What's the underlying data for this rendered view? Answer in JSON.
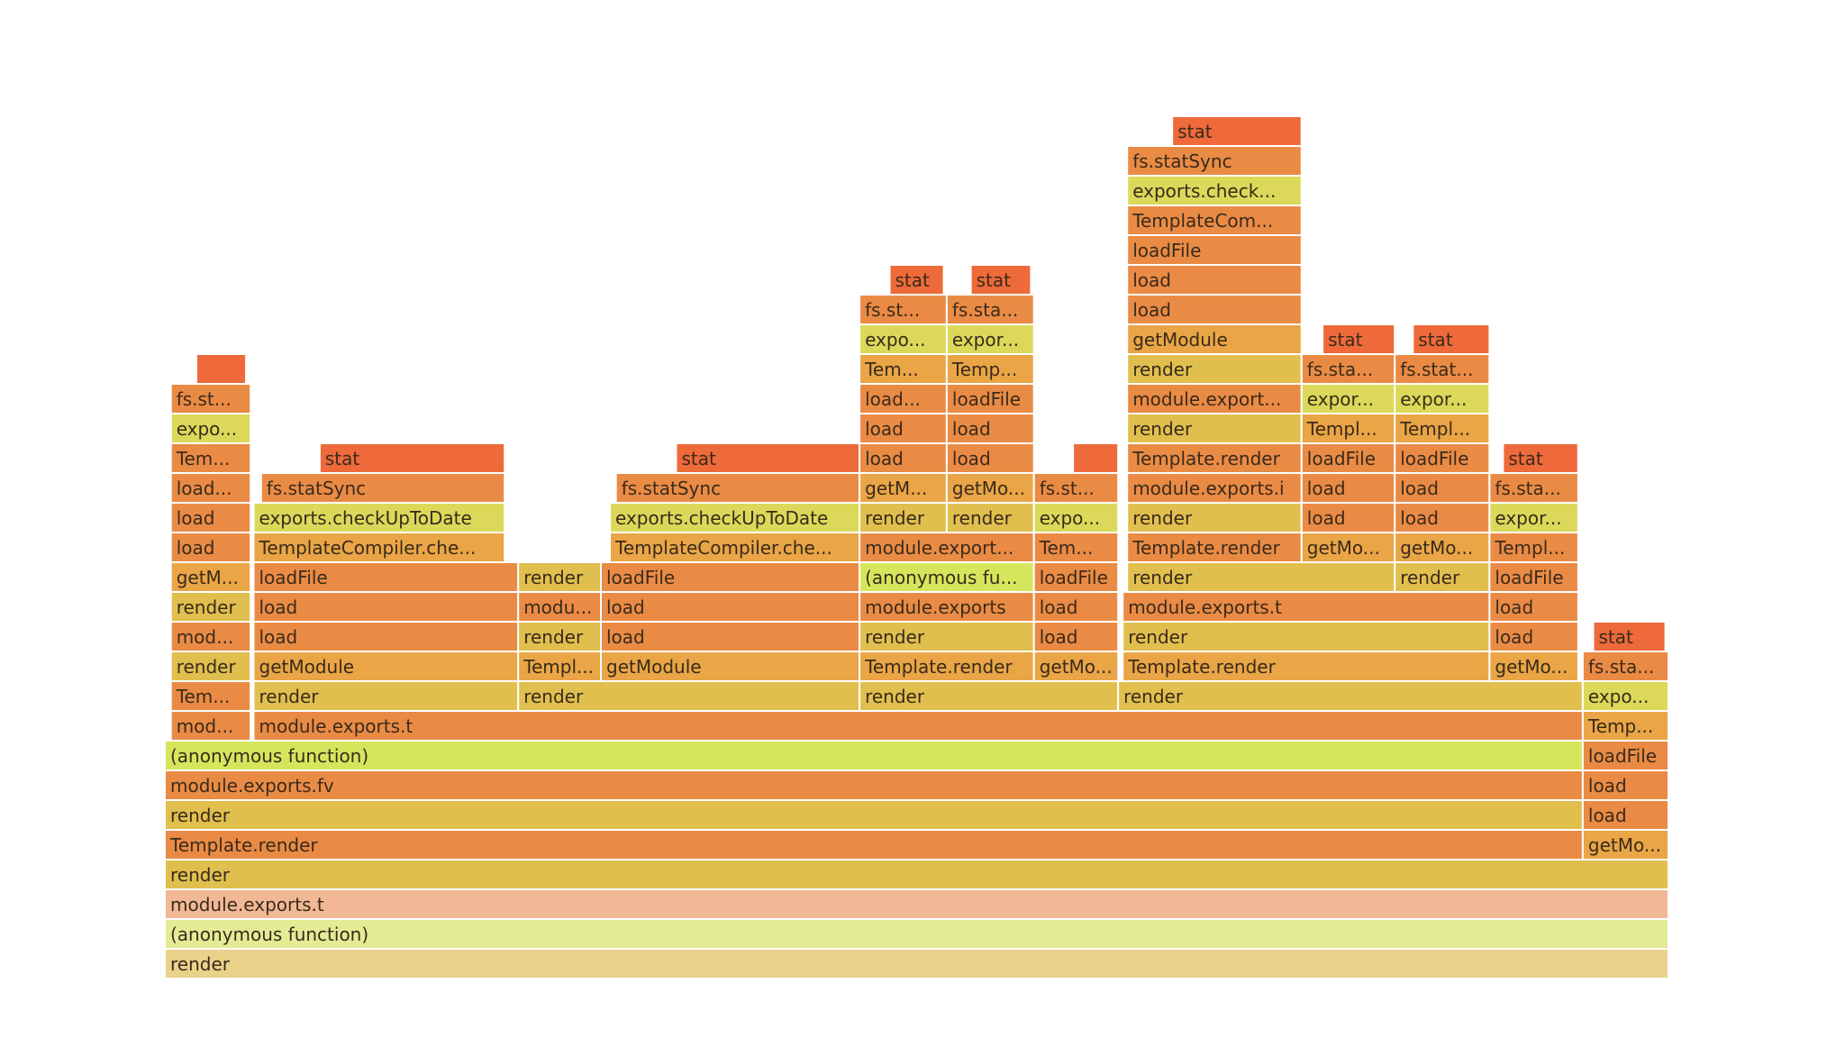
{
  "palette": {
    "red": "#ee6a3b",
    "orange": "#ea8b45",
    "amber": "#e9a546",
    "gold": "#e0bf4e",
    "yellow": "#dcd95a",
    "lime": "#d6e65c",
    "faded_salmon": "#f2b895",
    "faded_lime": "#e3ec94",
    "faded_tan": "#ead28a"
  },
  "chart_data": {
    "type": "flamegraph",
    "frames": [
      {
        "label": "render",
        "color": "faded_tan",
        "depth": 0,
        "start": 0,
        "end": 1.0
      },
      {
        "label": "(anonymous function)",
        "color": "faded_lime",
        "depth": 1,
        "start": 0,
        "end": 1.0
      },
      {
        "label": "module.exports.t",
        "color": "faded_salmon",
        "depth": 2,
        "start": 0,
        "end": 1.0
      },
      {
        "label": "render",
        "color": "gold",
        "depth": 3,
        "start": 0,
        "end": 1.0
      },
      {
        "label": "Template.render",
        "color": "orange",
        "depth": 4,
        "start": 0,
        "end": 0.943
      },
      {
        "label": "getMo...",
        "color": "amber",
        "depth": 4,
        "start": 0.943,
        "end": 1.0
      },
      {
        "label": "render",
        "color": "gold",
        "depth": 5,
        "start": 0,
        "end": 0.943
      },
      {
        "label": "load",
        "color": "orange",
        "depth": 5,
        "start": 0.943,
        "end": 1.0
      },
      {
        "label": "module.exports.fv",
        "color": "orange",
        "depth": 6,
        "start": 0,
        "end": 0.943
      },
      {
        "label": "load",
        "color": "orange",
        "depth": 6,
        "start": 0.943,
        "end": 1.0
      },
      {
        "label": "(anonymous function)",
        "color": "lime",
        "depth": 7,
        "start": 0,
        "end": 0.943
      },
      {
        "label": "loadFile",
        "color": "orange",
        "depth": 7,
        "start": 0.943,
        "end": 1.0
      },
      {
        "label": "mod...",
        "color": "orange",
        "depth": 8,
        "start": 0.004,
        "end": 0.057
      },
      {
        "label": "module.exports.t",
        "color": "orange",
        "depth": 8,
        "start": 0.059,
        "end": 0.943
      },
      {
        "label": "Temp...",
        "color": "amber",
        "depth": 8,
        "start": 0.943,
        "end": 1.0
      },
      {
        "label": "Tem...",
        "color": "orange",
        "depth": 9,
        "start": 0.004,
        "end": 0.057
      },
      {
        "label": "render",
        "color": "gold",
        "depth": 9,
        "start": 0.059,
        "end": 0.235
      },
      {
        "label": "render",
        "color": "gold",
        "depth": 9,
        "start": 0.235,
        "end": 0.462
      },
      {
        "label": "render",
        "color": "gold",
        "depth": 9,
        "start": 0.462,
        "end": 0.634
      },
      {
        "label": "render",
        "color": "gold",
        "depth": 9,
        "start": 0.634,
        "end": 0.943
      },
      {
        "label": "expo...",
        "color": "yellow",
        "depth": 9,
        "start": 0.943,
        "end": 1.0
      },
      {
        "label": "render",
        "color": "gold",
        "depth": 10,
        "start": 0.004,
        "end": 0.057
      },
      {
        "label": "getModule",
        "color": "amber",
        "depth": 10,
        "start": 0.059,
        "end": 0.235
      },
      {
        "label": "Templ...",
        "color": "amber",
        "depth": 10,
        "start": 0.235,
        "end": 0.29
      },
      {
        "label": "getModule",
        "color": "amber",
        "depth": 10,
        "start": 0.29,
        "end": 0.462
      },
      {
        "label": "Template.render",
        "color": "amber",
        "depth": 10,
        "start": 0.462,
        "end": 0.578
      },
      {
        "label": "getMo...",
        "color": "amber",
        "depth": 10,
        "start": 0.578,
        "end": 0.634
      },
      {
        "label": "Template.render",
        "color": "amber",
        "depth": 10,
        "start": 0.637,
        "end": 0.881
      },
      {
        "label": "getMo...",
        "color": "amber",
        "depth": 10,
        "start": 0.881,
        "end": 0.94
      },
      {
        "label": "fs.sta...",
        "color": "orange",
        "depth": 10,
        "start": 0.943,
        "end": 1.0
      },
      {
        "label": "mod...",
        "color": "orange",
        "depth": 11,
        "start": 0.004,
        "end": 0.057
      },
      {
        "label": "load",
        "color": "orange",
        "depth": 11,
        "start": 0.059,
        "end": 0.235
      },
      {
        "label": "render",
        "color": "gold",
        "depth": 11,
        "start": 0.235,
        "end": 0.29
      },
      {
        "label": "load",
        "color": "orange",
        "depth": 11,
        "start": 0.29,
        "end": 0.462
      },
      {
        "label": "render",
        "color": "gold",
        "depth": 11,
        "start": 0.462,
        "end": 0.578
      },
      {
        "label": "load",
        "color": "orange",
        "depth": 11,
        "start": 0.578,
        "end": 0.634
      },
      {
        "label": "render",
        "color": "gold",
        "depth": 11,
        "start": 0.637,
        "end": 0.881
      },
      {
        "label": "load",
        "color": "orange",
        "depth": 11,
        "start": 0.881,
        "end": 0.94
      },
      {
        "label": "stat",
        "color": "red",
        "depth": 11,
        "start": 0.95,
        "end": 0.998
      },
      {
        "label": "render",
        "color": "gold",
        "depth": 12,
        "start": 0.004,
        "end": 0.057
      },
      {
        "label": "load",
        "color": "orange",
        "depth": 12,
        "start": 0.059,
        "end": 0.235
      },
      {
        "label": "modu...",
        "color": "orange",
        "depth": 12,
        "start": 0.235,
        "end": 0.29
      },
      {
        "label": "load",
        "color": "orange",
        "depth": 12,
        "start": 0.29,
        "end": 0.462
      },
      {
        "label": "module.exports",
        "color": "orange",
        "depth": 12,
        "start": 0.462,
        "end": 0.578
      },
      {
        "label": "load",
        "color": "orange",
        "depth": 12,
        "start": 0.578,
        "end": 0.634
      },
      {
        "label": "module.exports.t",
        "color": "orange",
        "depth": 12,
        "start": 0.637,
        "end": 0.881
      },
      {
        "label": "load",
        "color": "orange",
        "depth": 12,
        "start": 0.881,
        "end": 0.94
      },
      {
        "label": "getM...",
        "color": "amber",
        "depth": 13,
        "start": 0.004,
        "end": 0.057
      },
      {
        "label": "loadFile",
        "color": "orange",
        "depth": 13,
        "start": 0.059,
        "end": 0.235
      },
      {
        "label": "render",
        "color": "gold",
        "depth": 13,
        "start": 0.235,
        "end": 0.29
      },
      {
        "label": "loadFile",
        "color": "orange",
        "depth": 13,
        "start": 0.29,
        "end": 0.462
      },
      {
        "label": "(anonymous fu...",
        "color": "lime",
        "depth": 13,
        "start": 0.462,
        "end": 0.578
      },
      {
        "label": "loadFile",
        "color": "orange",
        "depth": 13,
        "start": 0.578,
        "end": 0.634
      },
      {
        "label": "render",
        "color": "gold",
        "depth": 13,
        "start": 0.64,
        "end": 0.818
      },
      {
        "label": "render",
        "color": "gold",
        "depth": 13,
        "start": 0.818,
        "end": 0.881
      },
      {
        "label": "loadFile",
        "color": "orange",
        "depth": 13,
        "start": 0.881,
        "end": 0.94
      },
      {
        "label": "load",
        "color": "orange",
        "depth": 14,
        "start": 0.004,
        "end": 0.057
      },
      {
        "label": "TemplateCompiler.che...",
        "color": "amber",
        "depth": 14,
        "start": 0.059,
        "end": 0.226
      },
      {
        "label": "TemplateCompiler.che...",
        "color": "amber",
        "depth": 14,
        "start": 0.296,
        "end": 0.462
      },
      {
        "label": "module.export...",
        "color": "orange",
        "depth": 14,
        "start": 0.462,
        "end": 0.578
      },
      {
        "label": "Tem...",
        "color": "orange",
        "depth": 14,
        "start": 0.578,
        "end": 0.634
      },
      {
        "label": "Template.render",
        "color": "orange",
        "depth": 14,
        "start": 0.64,
        "end": 0.756
      },
      {
        "label": "getMo...",
        "color": "amber",
        "depth": 14,
        "start": 0.756,
        "end": 0.818
      },
      {
        "label": "getMo...",
        "color": "amber",
        "depth": 14,
        "start": 0.818,
        "end": 0.881
      },
      {
        "label": "Templ...",
        "color": "orange",
        "depth": 14,
        "start": 0.881,
        "end": 0.94
      },
      {
        "label": "load",
        "color": "orange",
        "depth": 15,
        "start": 0.004,
        "end": 0.057
      },
      {
        "label": "exports.checkUpToDate",
        "color": "yellow",
        "depth": 15,
        "start": 0.059,
        "end": 0.226
      },
      {
        "label": "exports.checkUpToDate",
        "color": "yellow",
        "depth": 15,
        "start": 0.296,
        "end": 0.462
      },
      {
        "label": "render",
        "color": "gold",
        "depth": 15,
        "start": 0.462,
        "end": 0.52
      },
      {
        "label": "render",
        "color": "gold",
        "depth": 15,
        "start": 0.52,
        "end": 0.578
      },
      {
        "label": "expo...",
        "color": "yellow",
        "depth": 15,
        "start": 0.578,
        "end": 0.634
      },
      {
        "label": "render",
        "color": "gold",
        "depth": 15,
        "start": 0.64,
        "end": 0.756
      },
      {
        "label": "load",
        "color": "orange",
        "depth": 15,
        "start": 0.756,
        "end": 0.818
      },
      {
        "label": "load",
        "color": "orange",
        "depth": 15,
        "start": 0.818,
        "end": 0.881
      },
      {
        "label": "expor...",
        "color": "yellow",
        "depth": 15,
        "start": 0.881,
        "end": 0.94
      },
      {
        "label": "load...",
        "color": "orange",
        "depth": 16,
        "start": 0.004,
        "end": 0.057
      },
      {
        "label": "fs.statSync",
        "color": "orange",
        "depth": 16,
        "start": 0.064,
        "end": 0.226
      },
      {
        "label": "fs.statSync",
        "color": "orange",
        "depth": 16,
        "start": 0.3,
        "end": 0.462
      },
      {
        "label": "getM...",
        "color": "amber",
        "depth": 16,
        "start": 0.462,
        "end": 0.52
      },
      {
        "label": "getMo...",
        "color": "amber",
        "depth": 16,
        "start": 0.52,
        "end": 0.578
      },
      {
        "label": "fs.st...",
        "color": "orange",
        "depth": 16,
        "start": 0.578,
        "end": 0.634
      },
      {
        "label": "module.exports.i",
        "color": "orange",
        "depth": 16,
        "start": 0.64,
        "end": 0.756
      },
      {
        "label": "load",
        "color": "orange",
        "depth": 16,
        "start": 0.756,
        "end": 0.818
      },
      {
        "label": "load",
        "color": "orange",
        "depth": 16,
        "start": 0.818,
        "end": 0.881
      },
      {
        "label": "fs.sta...",
        "color": "orange",
        "depth": 16,
        "start": 0.881,
        "end": 0.94
      },
      {
        "label": "Tem...",
        "color": "orange",
        "depth": 17,
        "start": 0.004,
        "end": 0.057
      },
      {
        "label": "stat",
        "color": "red",
        "depth": 17,
        "start": 0.103,
        "end": 0.226
      },
      {
        "label": "stat",
        "color": "red",
        "depth": 17,
        "start": 0.34,
        "end": 0.462
      },
      {
        "label": "load",
        "color": "orange",
        "depth": 17,
        "start": 0.462,
        "end": 0.52
      },
      {
        "label": "load",
        "color": "orange",
        "depth": 17,
        "start": 0.52,
        "end": 0.578
      },
      {
        "label": "",
        "color": "red",
        "depth": 17,
        "start": 0.604,
        "end": 0.634
      },
      {
        "label": "Template.render",
        "color": "orange",
        "depth": 17,
        "start": 0.64,
        "end": 0.756
      },
      {
        "label": "loadFile",
        "color": "orange",
        "depth": 17,
        "start": 0.756,
        "end": 0.818
      },
      {
        "label": "loadFile",
        "color": "orange",
        "depth": 17,
        "start": 0.818,
        "end": 0.881
      },
      {
        "label": "stat",
        "color": "red",
        "depth": 17,
        "start": 0.89,
        "end": 0.94
      },
      {
        "label": "expo...",
        "color": "yellow",
        "depth": 18,
        "start": 0.004,
        "end": 0.057
      },
      {
        "label": "load",
        "color": "orange",
        "depth": 18,
        "start": 0.462,
        "end": 0.52
      },
      {
        "label": "load",
        "color": "orange",
        "depth": 18,
        "start": 0.52,
        "end": 0.578
      },
      {
        "label": "render",
        "color": "gold",
        "depth": 18,
        "start": 0.64,
        "end": 0.756
      },
      {
        "label": "Templ...",
        "color": "amber",
        "depth": 18,
        "start": 0.756,
        "end": 0.818
      },
      {
        "label": "Templ...",
        "color": "amber",
        "depth": 18,
        "start": 0.818,
        "end": 0.881
      },
      {
        "label": "fs.st...",
        "color": "orange",
        "depth": 19,
        "start": 0.004,
        "end": 0.057
      },
      {
        "label": "load...",
        "color": "orange",
        "depth": 19,
        "start": 0.462,
        "end": 0.52
      },
      {
        "label": "loadFile",
        "color": "orange",
        "depth": 19,
        "start": 0.52,
        "end": 0.578
      },
      {
        "label": "module.export...",
        "color": "orange",
        "depth": 19,
        "start": 0.64,
        "end": 0.756
      },
      {
        "label": "expor...",
        "color": "yellow",
        "depth": 19,
        "start": 0.756,
        "end": 0.818
      },
      {
        "label": "expor...",
        "color": "yellow",
        "depth": 19,
        "start": 0.818,
        "end": 0.881
      },
      {
        "label": "",
        "color": "red",
        "depth": 20,
        "start": 0.021,
        "end": 0.054
      },
      {
        "label": "Tem...",
        "color": "amber",
        "depth": 20,
        "start": 0.462,
        "end": 0.52
      },
      {
        "label": "Temp...",
        "color": "amber",
        "depth": 20,
        "start": 0.52,
        "end": 0.578
      },
      {
        "label": "render",
        "color": "gold",
        "depth": 20,
        "start": 0.64,
        "end": 0.756
      },
      {
        "label": "fs.sta...",
        "color": "orange",
        "depth": 20,
        "start": 0.756,
        "end": 0.818
      },
      {
        "label": "fs.stat...",
        "color": "orange",
        "depth": 20,
        "start": 0.818,
        "end": 0.881
      },
      {
        "label": "expo...",
        "color": "yellow",
        "depth": 21,
        "start": 0.462,
        "end": 0.52
      },
      {
        "label": "expor...",
        "color": "yellow",
        "depth": 21,
        "start": 0.52,
        "end": 0.578
      },
      {
        "label": "getModule",
        "color": "amber",
        "depth": 21,
        "start": 0.64,
        "end": 0.756
      },
      {
        "label": "stat",
        "color": "red",
        "depth": 21,
        "start": 0.77,
        "end": 0.818
      },
      {
        "label": "stat",
        "color": "red",
        "depth": 21,
        "start": 0.83,
        "end": 0.881
      },
      {
        "label": "fs.st...",
        "color": "orange",
        "depth": 22,
        "start": 0.462,
        "end": 0.52
      },
      {
        "label": "fs.sta...",
        "color": "orange",
        "depth": 22,
        "start": 0.52,
        "end": 0.578
      },
      {
        "label": "load",
        "color": "orange",
        "depth": 22,
        "start": 0.64,
        "end": 0.756
      },
      {
        "label": "stat",
        "color": "red",
        "depth": 23,
        "start": 0.482,
        "end": 0.518
      },
      {
        "label": "stat",
        "color": "red",
        "depth": 23,
        "start": 0.536,
        "end": 0.576
      },
      {
        "label": "load",
        "color": "orange",
        "depth": 23,
        "start": 0.64,
        "end": 0.756
      },
      {
        "label": "loadFile",
        "color": "orange",
        "depth": 24,
        "start": 0.64,
        "end": 0.756
      },
      {
        "label": "TemplateCom...",
        "color": "orange",
        "depth": 25,
        "start": 0.64,
        "end": 0.756
      },
      {
        "label": "exports.check...",
        "color": "yellow",
        "depth": 26,
        "start": 0.64,
        "end": 0.756
      },
      {
        "label": "fs.statSync",
        "color": "orange",
        "depth": 27,
        "start": 0.64,
        "end": 0.756
      },
      {
        "label": "stat",
        "color": "red",
        "depth": 28,
        "start": 0.67,
        "end": 0.756
      }
    ]
  }
}
